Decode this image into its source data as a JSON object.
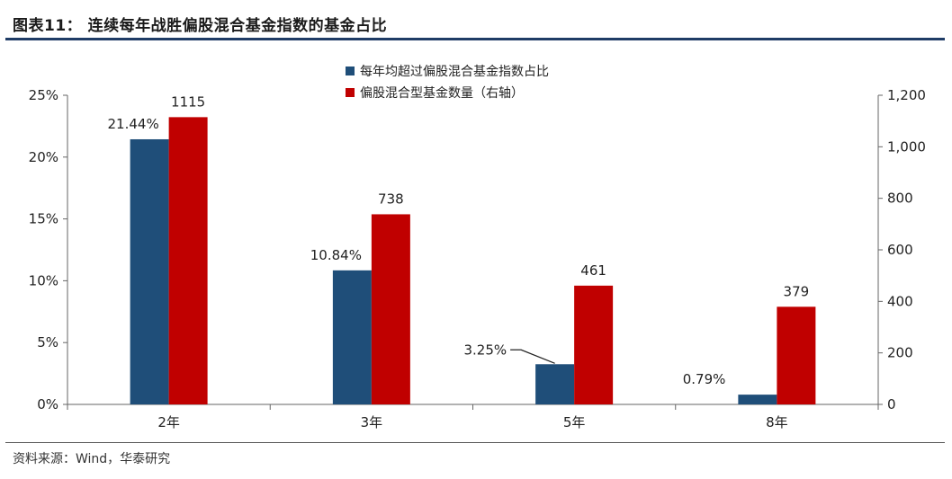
{
  "header": {
    "title": "图表11：  连续每年战胜偏股混合基金指数的基金占比"
  },
  "source": "资料来源：Wind，华泰研究",
  "colors": {
    "series_pct": "#1f4e79",
    "series_count": "#c00000",
    "rule": "#1f3c66"
  },
  "chart_data": {
    "type": "bar",
    "categories": [
      "2年",
      "3年",
      "5年",
      "8年"
    ],
    "series": [
      {
        "name": "每年均超过偏股混合基金指数占比",
        "axis": "left",
        "values": [
          21.44,
          10.84,
          3.25,
          0.79
        ],
        "labels": [
          "21.44%",
          "10.84%",
          "3.25%",
          "0.79%"
        ]
      },
      {
        "name": "偏股混合型基金数量（右轴）",
        "axis": "right",
        "values": [
          1115,
          738,
          461,
          379
        ],
        "labels": [
          "1115",
          "738",
          "461",
          "379"
        ]
      }
    ],
    "y_left": {
      "lim": [
        0,
        25
      ],
      "ticks": [
        0,
        5,
        10,
        15,
        20,
        25
      ],
      "tick_labels": [
        "0%",
        "5%",
        "10%",
        "15%",
        "20%",
        "25%"
      ]
    },
    "y_right": {
      "lim": [
        0,
        1200
      ],
      "ticks": [
        0,
        200,
        400,
        600,
        800,
        1000,
        1200
      ],
      "tick_labels": [
        "0",
        "200",
        "400",
        "600",
        "800",
        "1,000",
        "1,200"
      ]
    },
    "legend_position": "top-center",
    "grid": false
  }
}
